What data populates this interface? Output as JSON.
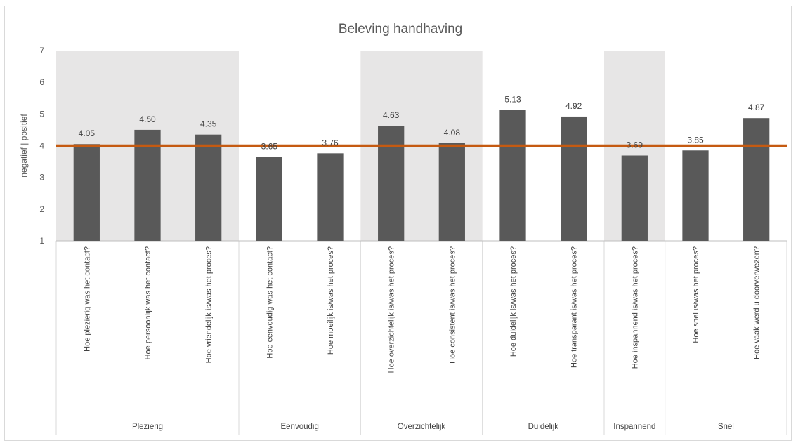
{
  "chart_data": {
    "type": "bar",
    "title": "Beleving handhaving",
    "ylabel": "negatief  |  positief",
    "ylim": [
      1,
      7
    ],
    "yticks": [
      1,
      2,
      3,
      4,
      5,
      6,
      7
    ],
    "reference_line": {
      "value": 4,
      "color": "#C55A11"
    },
    "bar_color": "#595959",
    "band_color": "#E7E6E6",
    "categories": [
      "Hoe plezierig was het contact?",
      "Hoe persoonlijk was het contact?",
      "Hoe vriendelijk is/was het proces?",
      "Hoe eenvoudig was het contact?",
      "Hoe moeilijk is/was het proces?",
      "Hoe overzichtelijk is/was het proces?",
      "Hoe consistent is/was het proces?",
      "Hoe duidelijk is/was het proces?",
      "Hoe transparant is/was het proces?",
      "Hoe inspannend is/was het proces?",
      "Hoe snel is/was het proces?",
      "Hoe vaak werd u doorverwezen?"
    ],
    "values": [
      4.05,
      4.5,
      4.35,
      3.65,
      3.76,
      4.63,
      4.08,
      5.13,
      4.92,
      3.69,
      3.85,
      4.87
    ],
    "value_labels": [
      "4.05",
      "4.50",
      "4.35",
      "3.65",
      "3.76",
      "4.63",
      "4.08",
      "5.13",
      "4.92",
      "3.69",
      "3.85",
      "4.87"
    ],
    "groups": [
      {
        "name": "Plezierig",
        "count": 3,
        "shaded": true
      },
      {
        "name": "Eenvoudig",
        "count": 2,
        "shaded": false
      },
      {
        "name": "Overzichtelijk",
        "count": 2,
        "shaded": true
      },
      {
        "name": "Duidelijk",
        "count": 2,
        "shaded": false
      },
      {
        "name": "Inspannend",
        "count": 1,
        "shaded": true
      },
      {
        "name": "Snel",
        "count": 2,
        "shaded": false
      }
    ],
    "grid": false,
    "legend": "none"
  }
}
